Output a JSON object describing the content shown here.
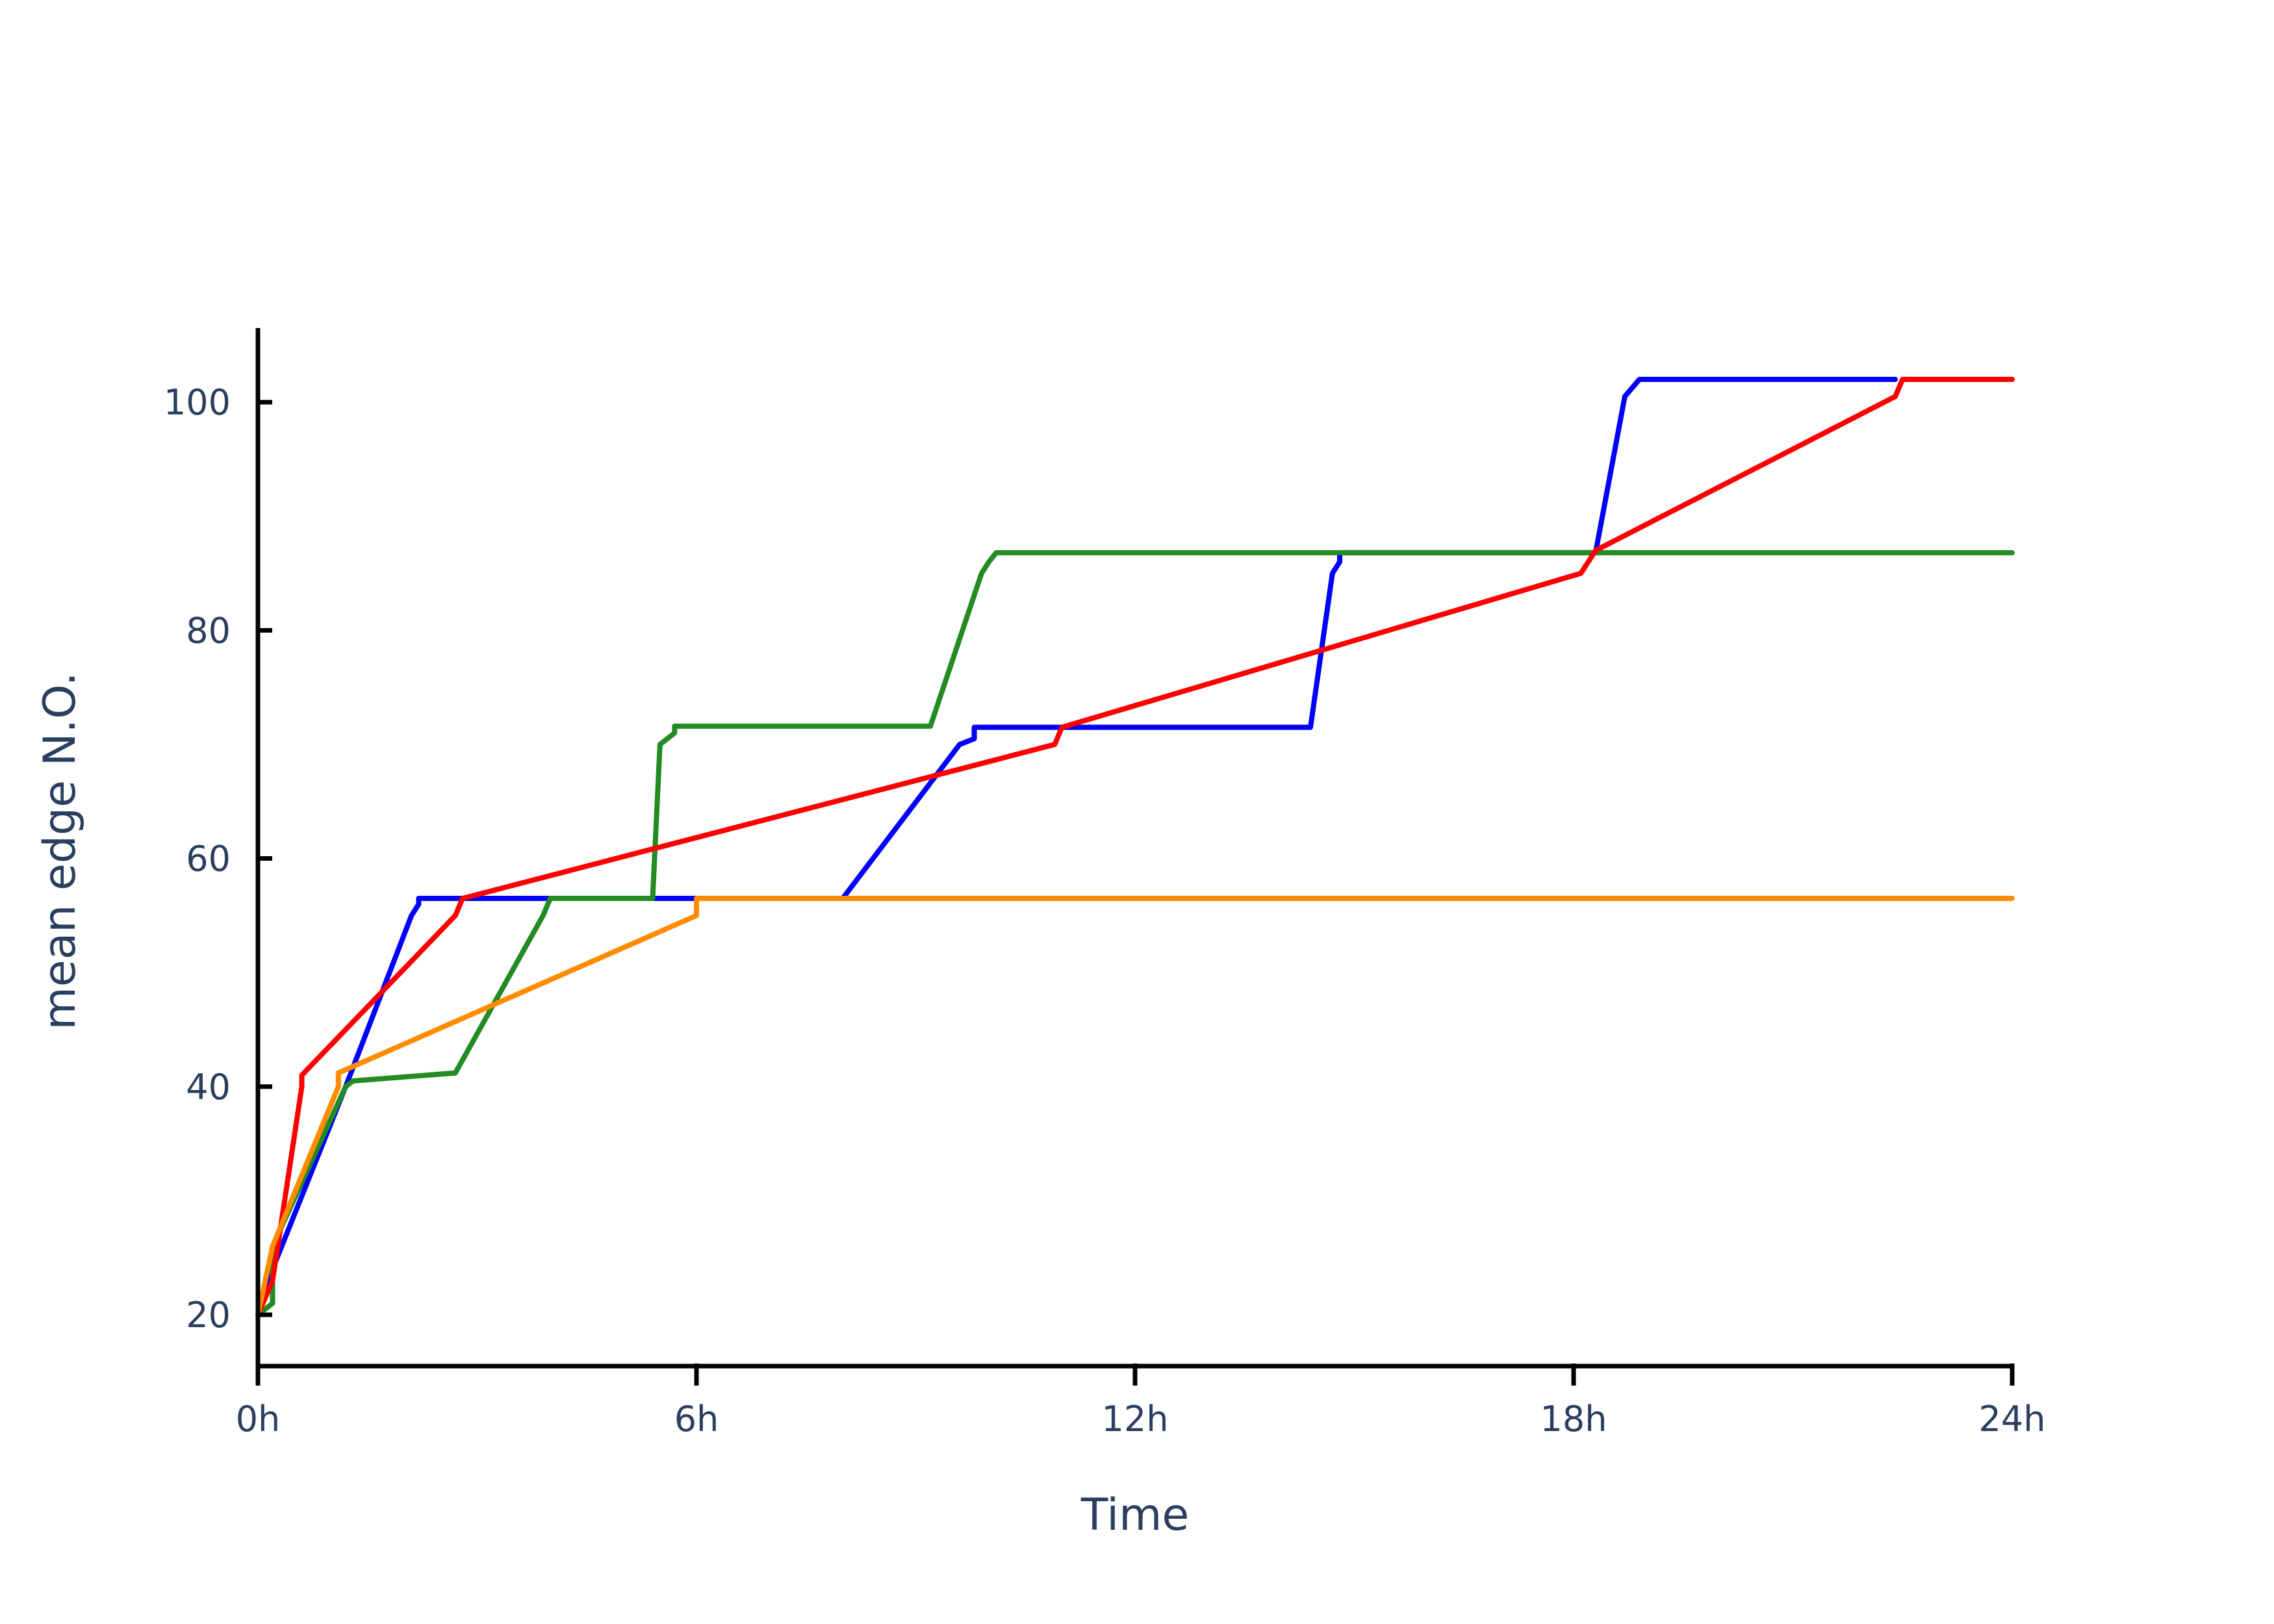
{
  "chart_data": {
    "type": "line",
    "title": "",
    "xlabel": "Time",
    "ylabel": "mean edge N.O.",
    "xlim": [
      0,
      24
    ],
    "ylim": [
      15.5,
      106.5
    ],
    "x_ticks": [
      {
        "value": 0,
        "label": "0h"
      },
      {
        "value": 6,
        "label": "6h"
      },
      {
        "value": 12,
        "label": "12h"
      },
      {
        "value": 18,
        "label": "18h"
      },
      {
        "value": 24,
        "label": "24h"
      }
    ],
    "y_ticks": [
      {
        "value": 20,
        "label": "20"
      },
      {
        "value": 40,
        "label": "40"
      },
      {
        "value": 60,
        "label": "60"
      },
      {
        "value": 80,
        "label": "80"
      },
      {
        "value": 100,
        "label": "100"
      }
    ],
    "grid": false,
    "legend": "none",
    "series": [
      {
        "color": "#0000ff",
        "points": [
          [
            0,
            20
          ],
          [
            0.2,
            24
          ],
          [
            1.2,
            40
          ],
          [
            2.1,
            55
          ],
          [
            2.2,
            56
          ],
          [
            2.2,
            56.5
          ],
          [
            8.0,
            56.5
          ],
          [
            9.6,
            70
          ],
          [
            9.8,
            70.5
          ],
          [
            9.8,
            71.5
          ],
          [
            14.4,
            71.5
          ],
          [
            14.7,
            85
          ],
          [
            14.8,
            86
          ],
          [
            14.8,
            86.8
          ],
          [
            18.3,
            86.8
          ],
          [
            18.7,
            100.5
          ],
          [
            18.9,
            102
          ],
          [
            22.4,
            102
          ]
        ]
      },
      {
        "color": "#228b22",
        "points": [
          [
            0,
            20
          ],
          [
            0.2,
            21
          ],
          [
            0.2,
            26
          ],
          [
            1.2,
            40
          ],
          [
            1.3,
            40.5
          ],
          [
            2.7,
            41.2
          ],
          [
            3.9,
            55
          ],
          [
            4.0,
            56.5
          ],
          [
            5.4,
            56.5
          ],
          [
            5.5,
            70
          ],
          [
            5.7,
            71
          ],
          [
            5.7,
            71.6
          ],
          [
            9.2,
            71.6
          ],
          [
            9.9,
            85
          ],
          [
            10.0,
            86
          ],
          [
            10.1,
            86.8
          ],
          [
            24,
            86.8
          ]
        ]
      },
      {
        "color": "#ff0000",
        "points": [
          [
            0,
            20
          ],
          [
            0.2,
            23
          ],
          [
            0.6,
            40
          ],
          [
            0.6,
            41
          ],
          [
            2.7,
            55
          ],
          [
            2.8,
            56.5
          ],
          [
            10.9,
            70
          ],
          [
            11.0,
            71.5
          ],
          [
            18.1,
            85
          ],
          [
            18.3,
            87
          ],
          [
            22.4,
            100.5
          ],
          [
            22.5,
            102
          ],
          [
            24,
            102
          ]
        ]
      },
      {
        "color": "#ff8c00",
        "points": [
          [
            0,
            20
          ],
          [
            0.2,
            26
          ],
          [
            1.1,
            40
          ],
          [
            1.1,
            41.2
          ],
          [
            6.0,
            55
          ],
          [
            6.0,
            56.5
          ],
          [
            24,
            56.5
          ]
        ]
      }
    ]
  }
}
